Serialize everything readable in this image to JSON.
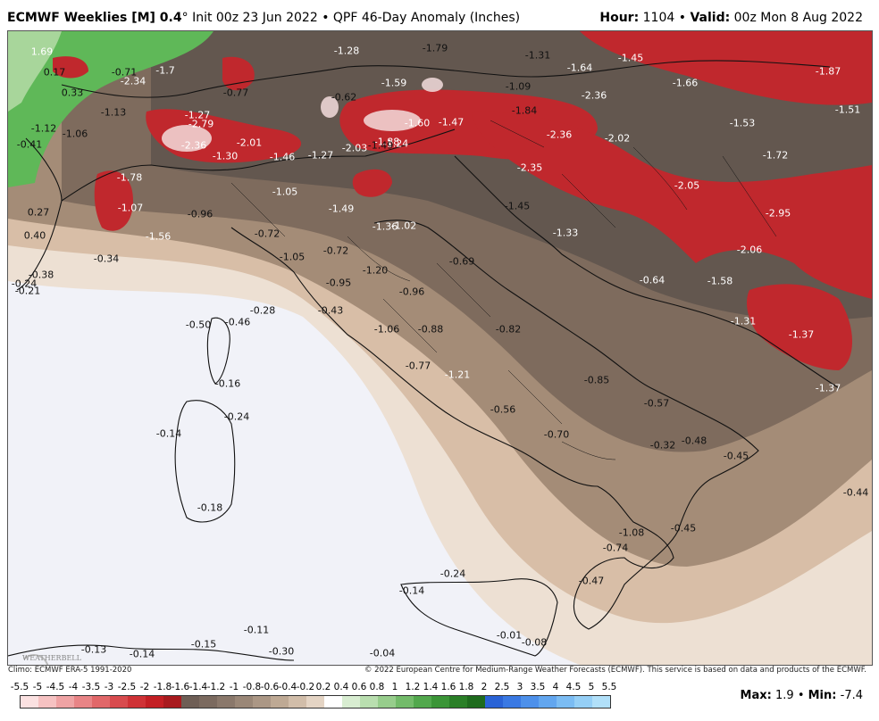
{
  "header": {
    "model": "ECMWF Weeklies [M] 0.4",
    "degree": "°",
    "init": "Init 00z 23 Jun 2022",
    "separator": "•",
    "product": "QPF 46-Day Anomaly (Inches)",
    "hour_label": "Hour:",
    "hour_value": "1104",
    "valid_label": "Valid:",
    "valid_value": "00z Mon 8 Aug 2022"
  },
  "map": {
    "colors": {
      "sea_light": "#f1f2f8",
      "tan_light": "#ede0d3",
      "tan": "#dcc2ab",
      "brown_light": "#b8a08a",
      "brown": "#9b846f",
      "brown_dark": "#7e6a5b",
      "grey_dark": "#5e534c",
      "red": "#c42a2e",
      "red_dark": "#a51d22",
      "green": "#4fae4a",
      "green_light": "#9dd38f",
      "white_hot": "#f4e5e5"
    },
    "labels": [
      {
        "t": "1.69",
        "c": "light"
      },
      {
        "t": "0.17",
        "c": "dark"
      },
      {
        "t": "-0.71",
        "c": "dark"
      },
      {
        "t": "-2.34",
        "c": "light"
      },
      {
        "t": "-1.7",
        "c": "light"
      },
      {
        "t": "0.33",
        "c": "dark"
      },
      {
        "t": "-0.77",
        "c": "dark"
      },
      {
        "t": "-1.28",
        "c": "light"
      },
      {
        "t": "-1.79",
        "c": "dark"
      },
      {
        "t": "-1.31",
        "c": "dark"
      },
      {
        "t": "-1.64",
        "c": "light"
      },
      {
        "t": "-1.45",
        "c": "light"
      },
      {
        "t": "-1.87",
        "c": "light"
      },
      {
        "t": "-1.13",
        "c": "dark"
      },
      {
        "t": "-1.27",
        "c": "light"
      },
      {
        "t": "-0.62",
        "c": "dark"
      },
      {
        "t": "-1.59",
        "c": "light"
      },
      {
        "t": "-1.09",
        "c": "dark"
      },
      {
        "t": "-2.36",
        "c": "light"
      },
      {
        "t": "-1.66",
        "c": "light"
      },
      {
        "t": "-1.51",
        "c": "light"
      },
      {
        "t": "-1.12",
        "c": "dark"
      },
      {
        "t": "-1.06",
        "c": "dark"
      },
      {
        "t": "-2.79",
        "c": "light"
      },
      {
        "t": "-1.60",
        "c": "light"
      },
      {
        "t": "-1.47",
        "c": "light"
      },
      {
        "t": "-1.84",
        "c": "dark"
      },
      {
        "t": "-1.53",
        "c": "light"
      },
      {
        "t": "-0.41",
        "c": "dark"
      },
      {
        "t": "-2.36",
        "c": "light"
      },
      {
        "t": "-2.01",
        "c": "light"
      },
      {
        "t": "-2.03",
        "c": "light"
      },
      {
        "t": "-1.88",
        "c": "light"
      },
      {
        "t": "-1.24",
        "c": "light"
      },
      {
        "t": "-2.36",
        "c": "light"
      },
      {
        "t": "-2.02",
        "c": "light"
      },
      {
        "t": "-1.30",
        "c": "light"
      },
      {
        "t": "-1.46",
        "c": "light"
      },
      {
        "t": "-1.27",
        "c": "light"
      },
      {
        "t": "-1.49",
        "c": "dark"
      },
      {
        "t": "-1.72",
        "c": "light"
      },
      {
        "t": "-1.78",
        "c": "light"
      },
      {
        "t": "-2.35",
        "c": "light"
      },
      {
        "t": "-2.05",
        "c": "light"
      },
      {
        "t": "-1.05",
        "c": "light"
      },
      {
        "t": "-1.07",
        "c": "light"
      },
      {
        "t": "-1.49",
        "c": "light"
      },
      {
        "t": "-1.45",
        "c": "dark"
      },
      {
        "t": "-2.95",
        "c": "light"
      },
      {
        "t": "0.27",
        "c": "dark"
      },
      {
        "t": "-0.96",
        "c": "dark"
      },
      {
        "t": "-1.36",
        "c": "light"
      },
      {
        "t": "-1.02",
        "c": "light"
      },
      {
        "t": "0.40",
        "c": "dark"
      },
      {
        "t": "-1.56",
        "c": "light"
      },
      {
        "t": "-0.72",
        "c": "dark"
      },
      {
        "t": "-1.33",
        "c": "light"
      },
      {
        "t": "-2.06",
        "c": "light"
      },
      {
        "t": "-0.34",
        "c": "dark"
      },
      {
        "t": "-1.05",
        "c": "dark"
      },
      {
        "t": "-0.72",
        "c": "dark"
      },
      {
        "t": "-0.69",
        "c": "dark"
      },
      {
        "t": "-0.38",
        "c": "dark"
      },
      {
        "t": "-1.20",
        "c": "dark"
      },
      {
        "t": "-0.24",
        "c": "dark"
      },
      {
        "t": "-0.95",
        "c": "dark"
      },
      {
        "t": "-0.64",
        "c": "light"
      },
      {
        "t": "-1.58",
        "c": "light"
      },
      {
        "t": "-0.21",
        "c": "dark"
      },
      {
        "t": "-0.96",
        "c": "dark"
      },
      {
        "t": "-0.28",
        "c": "dark"
      },
      {
        "t": "-0.43",
        "c": "dark"
      },
      {
        "t": "-0.50",
        "c": "dark"
      },
      {
        "t": "-0.46",
        "c": "dark"
      },
      {
        "t": "-1.06",
        "c": "dark"
      },
      {
        "t": "-0.88",
        "c": "dark"
      },
      {
        "t": "-0.82",
        "c": "dark"
      },
      {
        "t": "-1.31",
        "c": "light"
      },
      {
        "t": "-1.37",
        "c": "light"
      },
      {
        "t": "-0.77",
        "c": "dark"
      },
      {
        "t": "-1.21",
        "c": "light"
      },
      {
        "t": "-0.16",
        "c": "dark"
      },
      {
        "t": "-0.85",
        "c": "dark"
      },
      {
        "t": "-1.37",
        "c": "light"
      },
      {
        "t": "-0.24",
        "c": "dark"
      },
      {
        "t": "-0.57",
        "c": "dark"
      },
      {
        "t": "-0.56",
        "c": "dark"
      },
      {
        "t": "-0.14",
        "c": "dark"
      },
      {
        "t": "-0.70",
        "c": "dark"
      },
      {
        "t": "-0.48",
        "c": "dark"
      },
      {
        "t": "-0.32",
        "c": "dark"
      },
      {
        "t": "-0.45",
        "c": "dark"
      },
      {
        "t": "-0.44",
        "c": "dark"
      },
      {
        "t": "-0.18",
        "c": "dark"
      },
      {
        "t": "-1.08",
        "c": "dark"
      },
      {
        "t": "-0.45",
        "c": "dark"
      },
      {
        "t": "-0.74",
        "c": "dark"
      },
      {
        "t": "-0.24",
        "c": "dark"
      },
      {
        "t": "-0.47",
        "c": "dark"
      },
      {
        "t": "-0.14",
        "c": "dark"
      },
      {
        "t": "-0.11",
        "c": "dark"
      },
      {
        "t": "-0.01",
        "c": "dark"
      },
      {
        "t": "-0.08",
        "c": "dark"
      },
      {
        "t": "-0.13",
        "c": "dark"
      },
      {
        "t": "-0.15",
        "c": "dark"
      },
      {
        "t": "-0.14",
        "c": "dark"
      },
      {
        "t": "-0.30",
        "c": "dark"
      },
      {
        "t": "-0.04",
        "c": "dark"
      }
    ]
  },
  "footer": {
    "clim": "Climo: ECMWF ERA-5 1991-2020",
    "copyright": "© 2022 European Centre for Medium-Range Weather Forecasts (ECMWF). This service is based on data and products of the ECMWF.",
    "logo_text": "WEATHERBELL",
    "max_label": "Max:",
    "max_value": "1.9",
    "min_label": "Min:",
    "min_value": "-7.4",
    "separator": "•"
  },
  "legend": {
    "ticks": [
      "-5.5",
      "-5",
      "-4.5",
      "-4",
      "-3.5",
      "-3",
      "-2.5",
      "-2",
      "-1.8",
      "-1.6",
      "-1.4",
      "-1.2",
      "-1",
      "-0.8",
      "-0.6",
      "-0.4",
      "-0.2",
      "0.2",
      "0.4",
      "0.6",
      "0.8",
      "1",
      "1.2",
      "1.4",
      "1.6",
      "1.8",
      "2",
      "2.5",
      "3",
      "3.5",
      "4",
      "4.5",
      "5",
      "5.5"
    ],
    "colors": [
      "#fbe1e1",
      "#f6c2c2",
      "#efa3a4",
      "#e88486",
      "#e16769",
      "#d84b4e",
      "#cf3236",
      "#c31f24",
      "#a81a1e",
      "#6e5e55",
      "#7b6a5f",
      "#8a786b",
      "#9a8777",
      "#ab9785",
      "#bea994",
      "#d1bda9",
      "#e4d4c4",
      "#ffffff",
      "#d8edd1",
      "#b9deaf",
      "#97cd8c",
      "#73bb6a",
      "#52a84d",
      "#3b9537",
      "#2a7f27",
      "#1e6b1d",
      "#2a63d6",
      "#3a79e3",
      "#4d90ea",
      "#62a6ef",
      "#7bbcf3",
      "#95cff6",
      "#b1e0f9"
    ]
  }
}
